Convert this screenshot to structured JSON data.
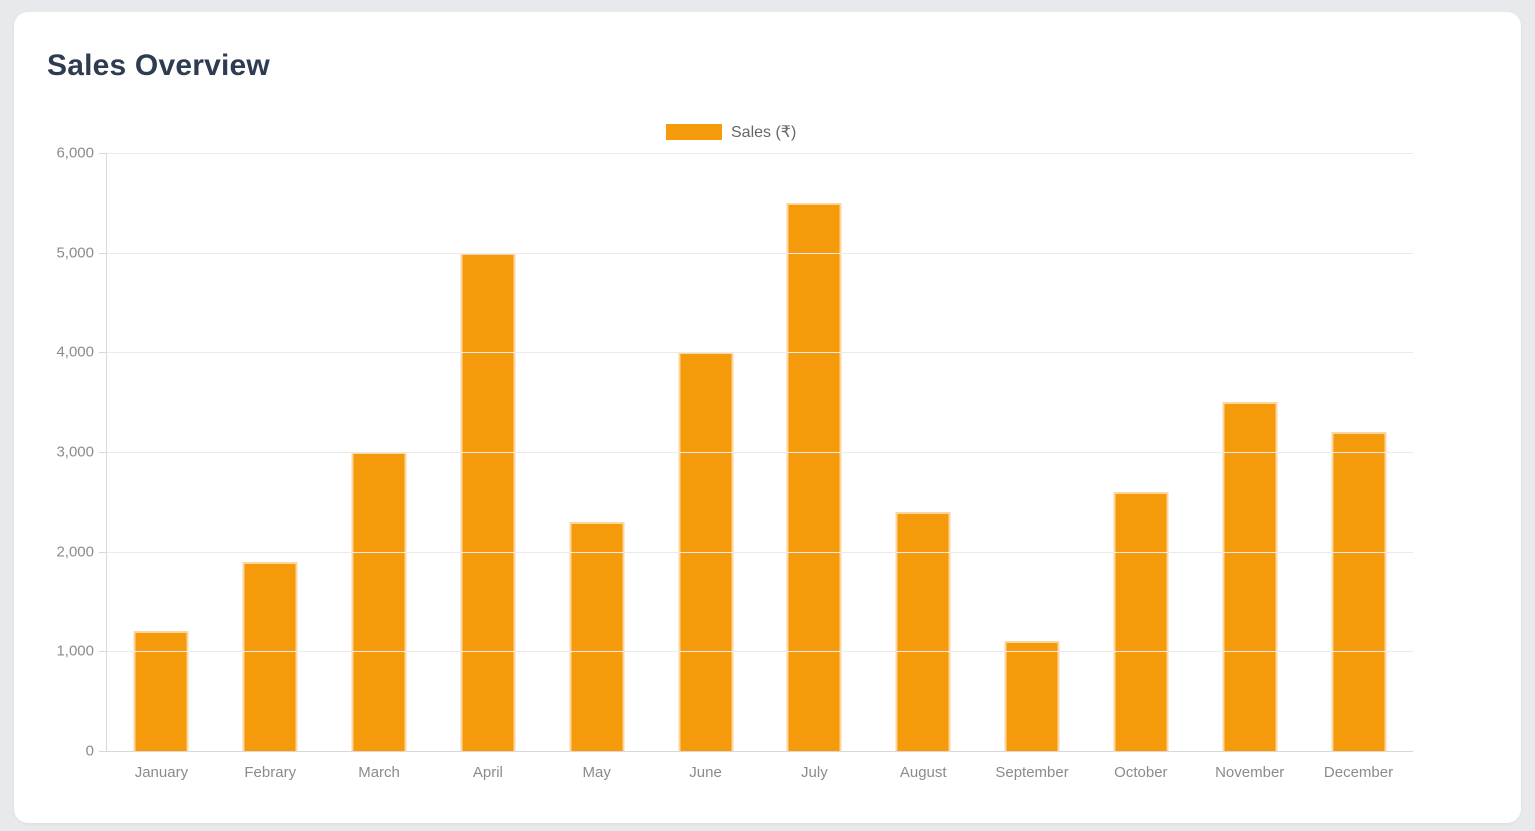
{
  "page": {
    "background_color": "#E7E9EC"
  },
  "card": {
    "title": "Sales Overview",
    "background_color": "#FFFFFF"
  },
  "chart_data": {
    "type": "bar",
    "title": "Sales Overview",
    "categories": [
      "January",
      "Febrary",
      "March",
      "April",
      "May",
      "June",
      "July",
      "August",
      "September",
      "October",
      "November",
      "December"
    ],
    "series": [
      {
        "name": "Sales (₹)",
        "values": [
          1200,
          1900,
          3000,
          5000,
          2300,
          4000,
          5500,
          2400,
          1100,
          2600,
          3500,
          3200
        ],
        "color": "#F59A0B"
      }
    ],
    "xlabel": "",
    "ylabel": "",
    "ylim": [
      0,
      6000
    ],
    "ytick_step": 1000,
    "ytick_labels": [
      "0",
      "1,000",
      "2,000",
      "3,000",
      "4,000",
      "5,000",
      "6,000"
    ],
    "grid": true,
    "legend_position": "top",
    "axis_color": "#D8D8D8",
    "gridline_color": "#EBEBEB",
    "tick_label_color": "#8b8b8b"
  }
}
